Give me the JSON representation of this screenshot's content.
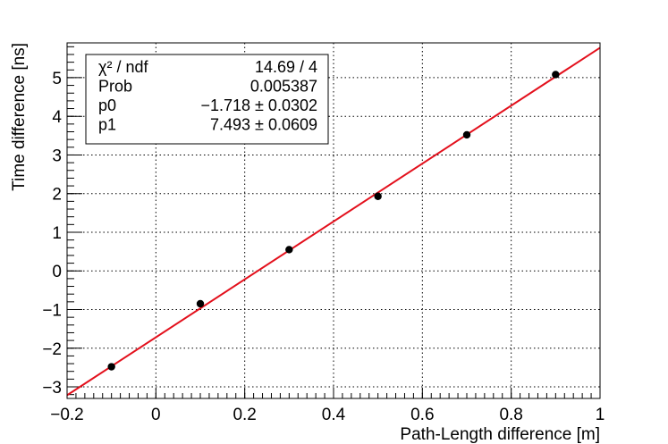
{
  "chart_data": {
    "type": "scatter",
    "xlabel": "Path-Length difference [m]",
    "ylabel": "Time difference [ns]",
    "xlim": [
      -0.2,
      1.0
    ],
    "ylim": [
      -3.3,
      5.9
    ],
    "grid": true,
    "x_ticks": [
      -0.2,
      0,
      0.2,
      0.4,
      0.6,
      0.8,
      1
    ],
    "x_tick_labels": [
      "−0.2",
      "0",
      "0.2",
      "0.4",
      "0.6",
      "0.8",
      "1"
    ],
    "y_ticks": [
      -3,
      -2,
      -1,
      0,
      1,
      2,
      3,
      4,
      5
    ],
    "y_tick_labels": [
      "−3",
      "−2",
      "−1",
      "0",
      "1",
      "2",
      "3",
      "4",
      "5"
    ],
    "x": [
      -0.1,
      0.1,
      0.3,
      0.5,
      0.7,
      0.9
    ],
    "y": [
      -2.48,
      -0.85,
      0.55,
      1.93,
      3.52,
      5.08
    ],
    "fit": {
      "p0": -1.718,
      "p1": 7.493,
      "color": "#e3101c"
    },
    "marker_color": "#000000",
    "stats": {
      "placement": "top-left",
      "rows": [
        {
          "label": "χ² / ndf",
          "value": "14.69 / 4"
        },
        {
          "label": "Prob",
          "value": "0.005387"
        },
        {
          "label": "p0",
          "value": "−1.718 ± 0.0302"
        },
        {
          "label": "p1",
          "value": "7.493 ± 0.0609"
        }
      ]
    }
  }
}
